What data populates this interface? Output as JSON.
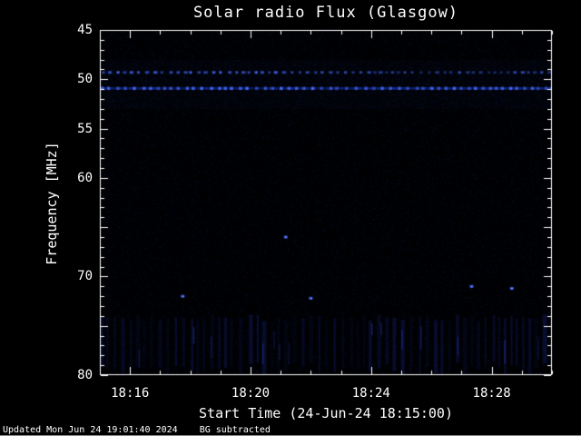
{
  "chart_data": {
    "type": "heatmap",
    "subtype": "radio-spectrogram",
    "title": "Solar radio Flux (Glasgow)",
    "xlabel": "Start Time (24-Jun-24 18:15:00)",
    "ylabel": "Frequency [MHz]",
    "x_start": "18:15:00",
    "x_end": "18:30:00",
    "x_tick_labels": [
      "18:16",
      "18:20",
      "18:24",
      "18:28"
    ],
    "x_minor_tick_step_min": 1,
    "y_tick_labels": [
      "45",
      "50",
      "55",
      "60",
      "70",
      "80"
    ],
    "y_tick_values": [
      45,
      50,
      55,
      60,
      70,
      80
    ],
    "y_major_tick_step": 5,
    "y_minor_tick_step": 1,
    "ylim": [
      45,
      80
    ],
    "y_axis_inverted_freq_increases_downward": true,
    "grid": false,
    "legend": false,
    "background_color": "#000000",
    "frame_color": "#ffffff",
    "signal_color": "#3c64ff",
    "features": {
      "background_noise": "sparse faint dark-blue speckle over black",
      "interference_bands": [
        {
          "freq_mhz": 49.3,
          "style": "dotted",
          "intensity": 0.9,
          "note": "periodic bright blue blobs, strongest 18:15-18:21, fainter afterwards"
        },
        {
          "freq_mhz": 50.9,
          "style": "continuous",
          "intensity": 1.0,
          "note": "bright blue band with periodic brighter blobs across full duration"
        }
      ],
      "vertical_stripe_band": {
        "freq_range_mhz": [
          73.8,
          79.6
        ],
        "note": "faint periodic vertical striping across the full time range"
      },
      "point_events": [
        {
          "time": "18:17:45",
          "freq_mhz": 72.0
        },
        {
          "time": "18:21:10",
          "freq_mhz": 66.0
        },
        {
          "time": "18:22:00",
          "freq_mhz": 72.2
        },
        {
          "time": "18:27:20",
          "freq_mhz": 71.0
        },
        {
          "time": "18:28:40",
          "freq_mhz": 71.2
        }
      ]
    }
  },
  "footer": {
    "updated": "Updated Mon Jun 24 19:01:40 2024",
    "note": "BG subtracted"
  }
}
